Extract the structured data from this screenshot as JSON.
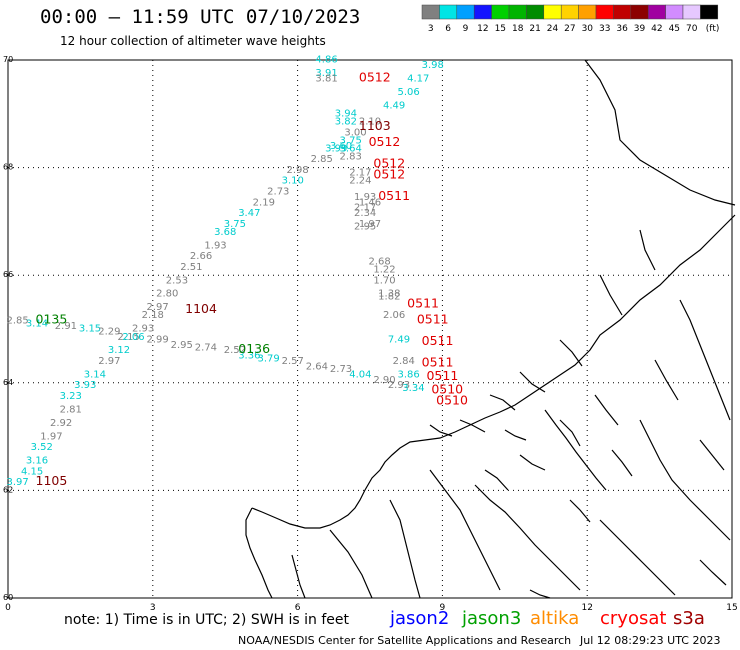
{
  "header": {
    "title": "00:00 — 11:59 UTC 07/10/2023",
    "subtitle": "12 hour collection of altimeter wave heights"
  },
  "legend": {
    "unit": "(ft)",
    "bins": [
      {
        "label": "3",
        "color": "#808080"
      },
      {
        "label": "6",
        "color": "#00e5e5"
      },
      {
        "label": "9",
        "color": "#00a0ff"
      },
      {
        "label": "12",
        "color": "#1414ff"
      },
      {
        "label": "15",
        "color": "#00d000"
      },
      {
        "label": "18",
        "color": "#00b400"
      },
      {
        "label": "21",
        "color": "#008c00"
      },
      {
        "label": "24",
        "color": "#ffff00"
      },
      {
        "label": "27",
        "color": "#ffd200"
      },
      {
        "label": "30",
        "color": "#ffa000"
      },
      {
        "label": "33",
        "color": "#ff0000"
      },
      {
        "label": "36",
        "color": "#c00000"
      },
      {
        "label": "39",
        "color": "#8c0000"
      },
      {
        "label": "42",
        "color": "#a000a0"
      },
      {
        "label": "45",
        "color": "#d28cff"
      },
      {
        "label": "70",
        "color": "#e6c8ff"
      },
      {
        "label": "",
        "color": "#000000"
      }
    ]
  },
  "axes": {
    "lon_ticks": [
      "0",
      "3",
      "6",
      "9",
      "12",
      "15"
    ],
    "lat_ticks": [
      "70",
      "68",
      "66",
      "64",
      "62",
      "60"
    ]
  },
  "footer": {
    "note": "note:  1) Time is in UTC;  2) SWH is in feet",
    "satellites": [
      {
        "label": "jason2",
        "color": "#0000ff"
      },
      {
        "label": "jason3",
        "color": "#00a000"
      },
      {
        "label": "altika",
        "color": "#ff8c00"
      },
      {
        "label": "cryosat",
        "color": "#ff0000"
      },
      {
        "label": "s3a",
        "color": "#a00000"
      }
    ],
    "credit": "NOAA/NESDIS Center for Satellite Applications and Research",
    "timestamp": "Jul 12 08:29:23 UTC 2023"
  },
  "chart_data": {
    "type": "scatter",
    "lon_range": [
      0,
      15
    ],
    "lat_range": [
      60,
      70
    ],
    "grid": true,
    "time_labels": [
      {
        "text": "0512",
        "lon": 7.6,
        "lat": 69.6,
        "color": "#e00000"
      },
      {
        "text": "1103",
        "lon": 7.6,
        "lat": 68.7,
        "color": "#800000"
      },
      {
        "text": "0512",
        "lon": 7.8,
        "lat": 68.4,
        "color": "#e00000"
      },
      {
        "text": "0512",
        "lon": 7.9,
        "lat": 68.0,
        "color": "#e00000"
      },
      {
        "text": "0512",
        "lon": 7.9,
        "lat": 67.8,
        "color": "#e00000"
      },
      {
        "text": "0511",
        "lon": 8.0,
        "lat": 67.4,
        "color": "#e00000"
      },
      {
        "text": "1104",
        "lon": 4.0,
        "lat": 65.3,
        "color": "#800000"
      },
      {
        "text": "0511",
        "lon": 8.6,
        "lat": 65.4,
        "color": "#e00000"
      },
      {
        "text": "0511",
        "lon": 8.8,
        "lat": 65.1,
        "color": "#e00000"
      },
      {
        "text": "0511",
        "lon": 8.9,
        "lat": 64.7,
        "color": "#e00000"
      },
      {
        "text": "0511",
        "lon": 8.9,
        "lat": 64.3,
        "color": "#e00000"
      },
      {
        "text": "0511",
        "lon": 9.0,
        "lat": 64.05,
        "color": "#e00000"
      },
      {
        "text": "0510",
        "lon": 9.1,
        "lat": 63.8,
        "color": "#e00000"
      },
      {
        "text": "0510",
        "lon": 9.2,
        "lat": 63.6,
        "color": "#e00000"
      },
      {
        "text": "0135",
        "lon": 0.9,
        "lat": 65.1,
        "color": "#008000"
      },
      {
        "text": "0136",
        "lon": 5.1,
        "lat": 64.55,
        "color": "#008000"
      },
      {
        "text": "1105",
        "lon": 0.9,
        "lat": 62.1,
        "color": "#800000"
      }
    ],
    "wave_heights": [
      {
        "text": "4.86",
        "lon": 6.6,
        "lat": 69.95,
        "color": "#00cccc"
      },
      {
        "text": "3.98",
        "lon": 8.8,
        "lat": 69.85,
        "color": "#00cccc"
      },
      {
        "text": "3.91",
        "lon": 6.6,
        "lat": 69.7,
        "color": "#00cccc"
      },
      {
        "text": "3.81",
        "lon": 6.6,
        "lat": 69.6,
        "color": "#808080"
      },
      {
        "text": "4.17",
        "lon": 8.5,
        "lat": 69.6,
        "color": "#00cccc"
      },
      {
        "text": "5.06",
        "lon": 8.3,
        "lat": 69.35,
        "color": "#00cccc"
      },
      {
        "text": "4.49",
        "lon": 8.0,
        "lat": 69.1,
        "color": "#00cccc"
      },
      {
        "text": "3.94",
        "lon": 7.0,
        "lat": 68.95,
        "color": "#00cccc"
      },
      {
        "text": "3.82",
        "lon": 7.0,
        "lat": 68.8,
        "color": "#00cccc"
      },
      {
        "text": "2.10",
        "lon": 7.5,
        "lat": 68.8,
        "color": "#808080"
      },
      {
        "text": "3.00",
        "lon": 7.2,
        "lat": 68.6,
        "color": "#808080"
      },
      {
        "text": "3.75",
        "lon": 7.1,
        "lat": 68.45,
        "color": "#00cccc"
      },
      {
        "text": "3.60",
        "lon": 6.9,
        "lat": 68.35,
        "color": "#00cccc"
      },
      {
        "text": "3.99",
        "lon": 6.8,
        "lat": 68.3,
        "color": "#00cccc"
      },
      {
        "text": "3.64",
        "lon": 7.1,
        "lat": 68.3,
        "color": "#00cccc"
      },
      {
        "text": "2.83",
        "lon": 7.1,
        "lat": 68.15,
        "color": "#808080"
      },
      {
        "text": "2.85",
        "lon": 6.5,
        "lat": 68.1,
        "color": "#808080"
      },
      {
        "text": "2.98",
        "lon": 6.0,
        "lat": 67.9,
        "color": "#808080"
      },
      {
        "text": "2.17",
        "lon": 7.3,
        "lat": 67.85,
        "color": "#808080"
      },
      {
        "text": "3.10",
        "lon": 5.9,
        "lat": 67.7,
        "color": "#00cccc"
      },
      {
        "text": "2.24",
        "lon": 7.3,
        "lat": 67.7,
        "color": "#808080"
      },
      {
        "text": "2.73",
        "lon": 5.6,
        "lat": 67.5,
        "color": "#808080"
      },
      {
        "text": "1.93",
        "lon": 7.4,
        "lat": 67.4,
        "color": "#808080"
      },
      {
        "text": "2.19",
        "lon": 5.3,
        "lat": 67.3,
        "color": "#808080"
      },
      {
        "text": "1.46",
        "lon": 7.5,
        "lat": 67.3,
        "color": "#808080"
      },
      {
        "text": "2.17",
        "lon": 7.4,
        "lat": 67.2,
        "color": "#808080"
      },
      {
        "text": "3.47",
        "lon": 5.0,
        "lat": 67.1,
        "color": "#00cccc"
      },
      {
        "text": "2.34",
        "lon": 7.4,
        "lat": 67.1,
        "color": "#808080"
      },
      {
        "text": "3.75",
        "lon": 4.7,
        "lat": 66.9,
        "color": "#00cccc"
      },
      {
        "text": "1.97",
        "lon": 7.5,
        "lat": 66.9,
        "color": "#808080"
      },
      {
        "text": "2.95",
        "lon": 7.4,
        "lat": 66.85,
        "color": "#808080"
      },
      {
        "text": "3.68",
        "lon": 4.5,
        "lat": 66.75,
        "color": "#00cccc"
      },
      {
        "text": "1.93",
        "lon": 4.3,
        "lat": 66.5,
        "color": "#808080"
      },
      {
        "text": "2.66",
        "lon": 4.0,
        "lat": 66.3,
        "color": "#808080"
      },
      {
        "text": "2.51",
        "lon": 3.8,
        "lat": 66.1,
        "color": "#808080"
      },
      {
        "text": "2.68",
        "lon": 7.7,
        "lat": 66.2,
        "color": "#808080"
      },
      {
        "text": "1.22",
        "lon": 7.8,
        "lat": 66.05,
        "color": "#808080"
      },
      {
        "text": "2.53",
        "lon": 3.5,
        "lat": 65.85,
        "color": "#808080"
      },
      {
        "text": "1.70",
        "lon": 7.8,
        "lat": 65.85,
        "color": "#808080"
      },
      {
        "text": "2.80",
        "lon": 3.3,
        "lat": 65.6,
        "color": "#808080"
      },
      {
        "text": "1.38",
        "lon": 7.9,
        "lat": 65.6,
        "color": "#808080"
      },
      {
        "text": "1.82",
        "lon": 7.9,
        "lat": 65.55,
        "color": "#808080"
      },
      {
        "text": "2.97",
        "lon": 3.1,
        "lat": 65.35,
        "color": "#808080"
      },
      {
        "text": "2.18",
        "lon": 3.0,
        "lat": 65.2,
        "color": "#808080"
      },
      {
        "text": "2.06",
        "lon": 8.0,
        "lat": 65.2,
        "color": "#808080"
      },
      {
        "text": "2.85",
        "lon": 0.2,
        "lat": 65.1,
        "color": "#808080"
      },
      {
        "text": "3.14",
        "lon": 0.6,
        "lat": 65.05,
        "color": "#00cccc"
      },
      {
        "text": "2.91",
        "lon": 1.2,
        "lat": 65.0,
        "color": "#808080"
      },
      {
        "text": "3.15",
        "lon": 1.7,
        "lat": 64.95,
        "color": "#00cccc"
      },
      {
        "text": "2.93",
        "lon": 2.8,
        "lat": 64.95,
        "color": "#808080"
      },
      {
        "text": "2.29",
        "lon": 2.1,
        "lat": 64.9,
        "color": "#808080"
      },
      {
        "text": "2.15",
        "lon": 2.5,
        "lat": 64.8,
        "color": "#808080"
      },
      {
        "text": "2.06",
        "lon": 2.6,
        "lat": 64.8,
        "color": "#00cccc"
      },
      {
        "text": "2.99",
        "lon": 3.1,
        "lat": 64.75,
        "color": "#808080"
      },
      {
        "text": "7.49",
        "lon": 8.1,
        "lat": 64.75,
        "color": "#00cccc"
      },
      {
        "text": "2.95",
        "lon": 3.6,
        "lat": 64.65,
        "color": "#808080"
      },
      {
        "text": "2.74",
        "lon": 4.1,
        "lat": 64.6,
        "color": "#808080"
      },
      {
        "text": "3.12",
        "lon": 2.3,
        "lat": 64.55,
        "color": "#00cccc"
      },
      {
        "text": "2.52",
        "lon": 4.7,
        "lat": 64.55,
        "color": "#808080"
      },
      {
        "text": "3.36",
        "lon": 5.0,
        "lat": 64.45,
        "color": "#00cccc"
      },
      {
        "text": "3.79",
        "lon": 5.4,
        "lat": 64.4,
        "color": "#00cccc"
      },
      {
        "text": "2.97",
        "lon": 2.1,
        "lat": 64.35,
        "color": "#808080"
      },
      {
        "text": "2.57",
        "lon": 5.9,
        "lat": 64.35,
        "color": "#808080"
      },
      {
        "text": "2.84",
        "lon": 8.2,
        "lat": 64.35,
        "color": "#808080"
      },
      {
        "text": "2.64",
        "lon": 6.4,
        "lat": 64.25,
        "color": "#808080"
      },
      {
        "text": "2.73",
        "lon": 6.9,
        "lat": 64.2,
        "color": "#808080"
      },
      {
        "text": "3.14",
        "lon": 1.8,
        "lat": 64.1,
        "color": "#00cccc"
      },
      {
        "text": "4.04",
        "lon": 7.3,
        "lat": 64.1,
        "color": "#00cccc"
      },
      {
        "text": "3.86",
        "lon": 8.3,
        "lat": 64.1,
        "color": "#00cccc"
      },
      {
        "text": "2.90",
        "lon": 7.8,
        "lat": 64.0,
        "color": "#808080"
      },
      {
        "text": "3.93",
        "lon": 1.6,
        "lat": 63.9,
        "color": "#00cccc"
      },
      {
        "text": "2.93",
        "lon": 8.1,
        "lat": 63.9,
        "color": "#808080"
      },
      {
        "text": "3.34",
        "lon": 8.4,
        "lat": 63.85,
        "color": "#00cccc"
      },
      {
        "text": "3.23",
        "lon": 1.3,
        "lat": 63.7,
        "color": "#00cccc"
      },
      {
        "text": "2.81",
        "lon": 1.3,
        "lat": 63.45,
        "color": "#808080"
      },
      {
        "text": "2.92",
        "lon": 1.1,
        "lat": 63.2,
        "color": "#808080"
      },
      {
        "text": "1.97",
        "lon": 0.9,
        "lat": 62.95,
        "color": "#808080"
      },
      {
        "text": "3.52",
        "lon": 0.7,
        "lat": 62.75,
        "color": "#00cccc"
      },
      {
        "text": "3.16",
        "lon": 0.6,
        "lat": 62.5,
        "color": "#00cccc"
      },
      {
        "text": "4.15",
        "lon": 0.5,
        "lat": 62.3,
        "color": "#00cccc"
      },
      {
        "text": "3.97",
        "lon": 0.2,
        "lat": 62.1,
        "color": "#00cccc"
      }
    ]
  }
}
